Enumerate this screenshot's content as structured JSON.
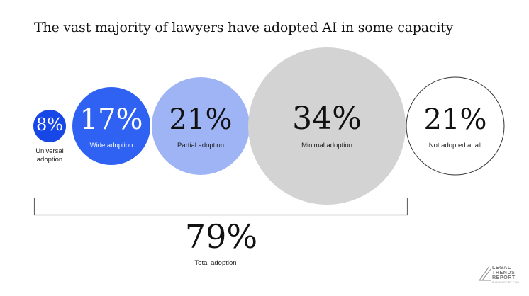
{
  "chart_data": {
    "type": "bubble",
    "title": "The vast majority of lawyers have adopted AI in some capacity",
    "categories": [
      "Universal adoption",
      "Wide adoption",
      "Partial adoption",
      "Minimal adoption",
      "Not adopted at all"
    ],
    "values": [
      8,
      17,
      21,
      34,
      21
    ],
    "value_labels": [
      "8%",
      "17%",
      "21%",
      "34%",
      "21%"
    ],
    "colors": [
      "#1747e6",
      "#2f62f2",
      "#9fb4f5",
      "#d3d3d3",
      "#ffffff"
    ],
    "bracket": {
      "label": "Total adoption",
      "value": 79,
      "value_label": "79%",
      "covers": [
        "Universal adoption",
        "Wide adoption",
        "Partial adoption",
        "Minimal adoption"
      ]
    }
  },
  "logo": {
    "lines": [
      "LEGAL",
      "TRENDS",
      "REPORT"
    ],
    "subtitle": "PUBLISHED BY CLIO"
  }
}
